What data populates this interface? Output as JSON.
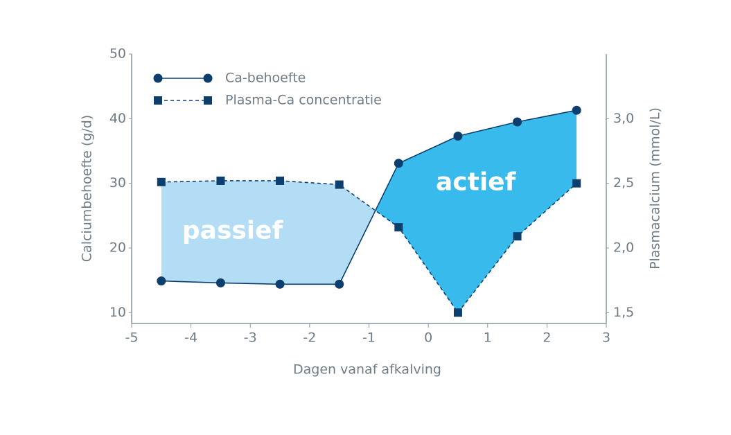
{
  "chart_data": {
    "type": "line",
    "xlabel": "Dagen vanaf afkalving",
    "ylabel": "Calciumbehoefte (g/d)",
    "y2label": "Plasmacalcium (mmol/L)",
    "x": [
      -4.5,
      -3.5,
      -2.5,
      -1.5,
      -0.5,
      0.5,
      1.5,
      2.5
    ],
    "xlim": [
      -5,
      3
    ],
    "xticks": [
      -5,
      -4,
      -3,
      -2,
      -1,
      0,
      1,
      2,
      3
    ],
    "ylim": [
      8,
      50
    ],
    "yticks": [
      10,
      20,
      30,
      40,
      50
    ],
    "y2lim": [
      1.4,
      3.5
    ],
    "y2ticks": [
      {
        "value": 1.5,
        "label": "1,5"
      },
      {
        "value": 2.0,
        "label": "2,0"
      },
      {
        "value": 2.5,
        "label": "2,5"
      },
      {
        "value": 3.0,
        "label": "3,0"
      }
    ],
    "series": [
      {
        "name": "Ca-behoefte",
        "color": "#0d3f6e",
        "marker": "circle",
        "dash": false,
        "values": [
          14.9,
          14.6,
          14.4,
          14.4,
          33.1,
          37.3,
          39.5,
          41.3
        ]
      },
      {
        "name": "Plasma-Ca concentratie",
        "color": "#0d3f6e",
        "marker": "square",
        "dash": true,
        "axis": "y2",
        "values": [
          2.51,
          2.52,
          2.52,
          2.49,
          2.16,
          1.5,
          2.09,
          2.5
        ]
      }
    ],
    "annotations": [
      {
        "text": "passief",
        "x": -3.3,
        "y": 22.5,
        "color": "#b3dcf5"
      },
      {
        "text": "actief",
        "x": 0.8,
        "y": 30,
        "color": "#38bbec"
      }
    ]
  }
}
